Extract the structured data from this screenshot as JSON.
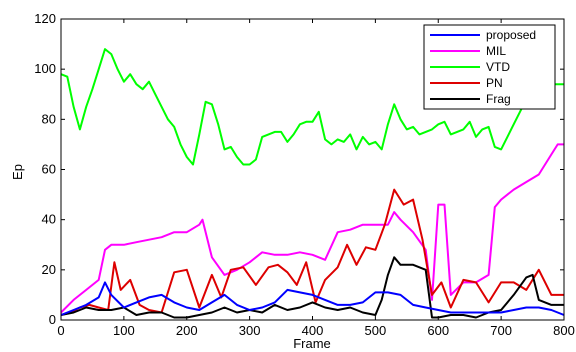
{
  "chart_data": {
    "type": "line",
    "xlabel": "Frame",
    "ylabel": "Ep",
    "xlim": [
      0,
      800
    ],
    "ylim": [
      0,
      120
    ],
    "xticks": [
      "0",
      "100",
      "200",
      "300",
      "400",
      "500",
      "600",
      "700",
      "800"
    ],
    "yticks": [
      "0",
      "20",
      "40",
      "60",
      "80",
      "100",
      "120"
    ],
    "grid": false,
    "legend_position": "top-right",
    "series": [
      {
        "name": "proposed",
        "color": "#0000ff",
        "x": [
          0,
          20,
          40,
          60,
          70,
          80,
          100,
          120,
          140,
          160,
          180,
          200,
          220,
          240,
          260,
          280,
          300,
          320,
          340,
          360,
          380,
          400,
          420,
          440,
          460,
          480,
          500,
          520,
          540,
          560,
          580,
          600,
          620,
          640,
          660,
          680,
          700,
          720,
          740,
          760,
          780,
          800
        ],
        "y": [
          2,
          4,
          6,
          9,
          15,
          10,
          5,
          7,
          9,
          10,
          7,
          5,
          4,
          7,
          10,
          6,
          4,
          5,
          7,
          12,
          11,
          10,
          8,
          6,
          6,
          7,
          11,
          11,
          10,
          6,
          5,
          4,
          3,
          3,
          3,
          3,
          3,
          4,
          5,
          5,
          4,
          2
        ]
      },
      {
        "name": "MIL",
        "color": "#ff00ff",
        "x": [
          0,
          20,
          40,
          60,
          70,
          80,
          100,
          120,
          140,
          160,
          180,
          200,
          220,
          225,
          240,
          260,
          280,
          300,
          320,
          340,
          360,
          380,
          400,
          420,
          440,
          460,
          480,
          500,
          520,
          530,
          540,
          560,
          580,
          590,
          600,
          610,
          620,
          640,
          660,
          680,
          690,
          700,
          720,
          740,
          760,
          780,
          790,
          800
        ],
        "y": [
          3,
          8,
          12,
          16,
          28,
          30,
          30,
          31,
          32,
          33,
          35,
          35,
          38,
          40,
          25,
          18,
          20,
          23,
          27,
          26,
          26,
          27,
          26,
          24,
          35,
          36,
          38,
          38,
          38,
          43,
          40,
          35,
          28,
          8,
          46,
          46,
          10,
          15,
          15,
          18,
          45,
          48,
          52,
          55,
          58,
          66,
          70,
          70
        ]
      },
      {
        "name": "VTD",
        "color": "#00ff00",
        "x": [
          0,
          10,
          20,
          30,
          40,
          50,
          60,
          70,
          80,
          90,
          100,
          110,
          120,
          130,
          140,
          150,
          160,
          170,
          180,
          190,
          200,
          210,
          220,
          230,
          240,
          250,
          260,
          270,
          280,
          290,
          300,
          310,
          320,
          330,
          340,
          350,
          360,
          370,
          380,
          390,
          400,
          410,
          420,
          430,
          440,
          450,
          460,
          470,
          480,
          490,
          500,
          510,
          520,
          530,
          540,
          550,
          560,
          570,
          580,
          590,
          600,
          610,
          620,
          630,
          640,
          650,
          660,
          670,
          680,
          690,
          700,
          710,
          720,
          730,
          740,
          750,
          760,
          770,
          780,
          790,
          800
        ],
        "y": [
          98,
          97,
          85,
          76,
          85,
          92,
          100,
          108,
          106,
          100,
          95,
          98,
          94,
          92,
          95,
          90,
          85,
          80,
          77,
          70,
          65,
          62,
          74,
          87,
          86,
          78,
          68,
          69,
          65,
          62,
          62,
          64,
          73,
          74,
          75,
          75,
          71,
          74,
          78,
          79,
          79,
          83,
          72,
          70,
          72,
          71,
          74,
          68,
          73,
          70,
          71,
          68,
          78,
          86,
          80,
          76,
          77,
          74,
          75,
          76,
          78,
          79,
          74,
          75,
          76,
          79,
          73,
          76,
          77,
          69,
          68,
          73,
          78,
          83,
          88,
          91,
          92,
          93,
          94,
          94,
          94
        ]
      },
      {
        "name": "PN",
        "color": "#dd0000",
        "x": [
          0,
          15,
          30,
          45,
          60,
          75,
          85,
          95,
          110,
          125,
          140,
          160,
          180,
          200,
          220,
          240,
          255,
          270,
          290,
          310,
          330,
          345,
          360,
          375,
          390,
          405,
          420,
          440,
          455,
          470,
          485,
          500,
          515,
          530,
          545,
          560,
          575,
          590,
          605,
          620,
          640,
          660,
          680,
          700,
          720,
          740,
          760,
          780,
          800
        ],
        "y": [
          2,
          3,
          5,
          6,
          5,
          4,
          23,
          12,
          16,
          6,
          4,
          3,
          19,
          20,
          5,
          18,
          9,
          20,
          21,
          14,
          21,
          22,
          19,
          14,
          23,
          7,
          16,
          21,
          30,
          22,
          29,
          28,
          38,
          52,
          46,
          48,
          32,
          10,
          15,
          5,
          16,
          15,
          7,
          15,
          15,
          12,
          20,
          10,
          10
        ]
      },
      {
        "name": "Frag",
        "color": "#000000",
        "x": [
          0,
          20,
          40,
          60,
          80,
          100,
          120,
          140,
          160,
          180,
          200,
          220,
          240,
          260,
          280,
          300,
          320,
          340,
          360,
          380,
          400,
          420,
          440,
          460,
          480,
          500,
          510,
          520,
          530,
          540,
          560,
          580,
          590,
          600,
          620,
          640,
          660,
          680,
          700,
          720,
          740,
          750,
          760,
          780,
          800
        ],
        "y": [
          2,
          3,
          5,
          4,
          4,
          5,
          2,
          3,
          3,
          1,
          1,
          2,
          3,
          5,
          3,
          4,
          3,
          6,
          4,
          5,
          7,
          5,
          4,
          5,
          3,
          2,
          8,
          18,
          25,
          22,
          22,
          20,
          1,
          1,
          2,
          2,
          1,
          3,
          4,
          10,
          17,
          18,
          8,
          6,
          6
        ]
      }
    ]
  }
}
